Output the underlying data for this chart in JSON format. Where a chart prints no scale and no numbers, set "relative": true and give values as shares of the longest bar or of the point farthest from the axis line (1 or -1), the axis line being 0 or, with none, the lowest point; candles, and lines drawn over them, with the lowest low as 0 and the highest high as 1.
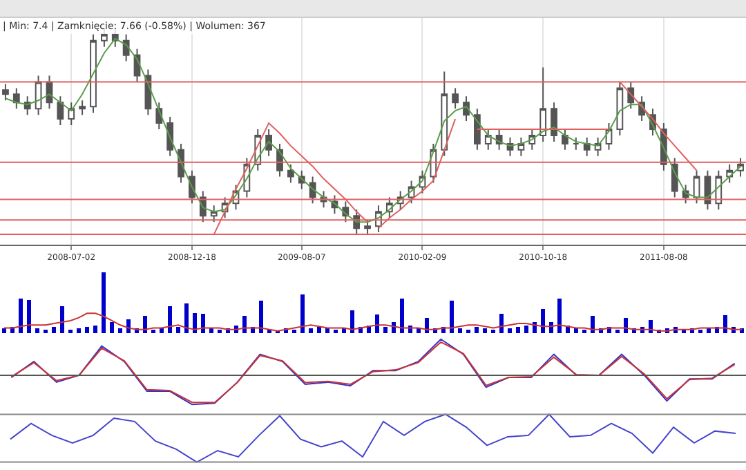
{
  "chart_data": [
    {
      "type": "candlestick",
      "relative": true,
      "grid": "x",
      "annotations": [
        "| Min: 7.4 | Zamknięcie: 7.66 (-0.58%) | Wolumen: 367"
      ],
      "color": "#555555",
      "categories": [
        null,
        null,
        null,
        null,
        null,
        null,
        "2008-07-02",
        null,
        null,
        null,
        null,
        null,
        null,
        null,
        null,
        null,
        null,
        "2008-12-18",
        null,
        null,
        null,
        null,
        null,
        null,
        null,
        null,
        null,
        "2009-08-07",
        null,
        null,
        null,
        null,
        null,
        null,
        null,
        null,
        null,
        null,
        "2010-02-09",
        null,
        null,
        null,
        null,
        null,
        null,
        null,
        null,
        null,
        null,
        "2010-10-18",
        null,
        null,
        null,
        null,
        null,
        null,
        null,
        null,
        null,
        null,
        "2011-08-08",
        null,
        null,
        null,
        null,
        null,
        null,
        null
      ],
      "ohlc": [
        [
          0.7,
          0.73,
          0.65,
          0.68
        ],
        [
          0.68,
          0.71,
          0.61,
          0.64
        ],
        [
          0.64,
          0.67,
          0.58,
          0.61
        ],
        [
          0.61,
          0.77,
          0.58,
          0.74
        ],
        [
          0.74,
          0.77,
          0.61,
          0.64
        ],
        [
          0.64,
          0.67,
          0.53,
          0.56
        ],
        [
          0.56,
          0.64,
          0.53,
          0.61
        ],
        [
          0.61,
          0.65,
          0.58,
          0.62
        ],
        [
          0.62,
          0.97,
          0.59,
          0.94
        ],
        [
          0.94,
          1.0,
          0.91,
          0.97
        ],
        [
          0.97,
          1.0,
          0.91,
          0.94
        ],
        [
          0.94,
          0.97,
          0.84,
          0.87
        ],
        [
          0.87,
          0.9,
          0.74,
          0.77
        ],
        [
          0.77,
          0.8,
          0.58,
          0.61
        ],
        [
          0.61,
          0.64,
          0.51,
          0.54
        ],
        [
          0.54,
          0.57,
          0.38,
          0.41
        ],
        [
          0.41,
          0.44,
          0.25,
          0.28
        ],
        [
          0.28,
          0.31,
          0.15,
          0.18
        ],
        [
          0.18,
          0.21,
          0.06,
          0.09
        ],
        [
          0.09,
          0.14,
          0.06,
          0.11
        ],
        [
          0.11,
          0.18,
          0.08,
          0.15
        ],
        [
          0.15,
          0.24,
          0.12,
          0.21
        ],
        [
          0.21,
          0.37,
          0.18,
          0.34
        ],
        [
          0.34,
          0.51,
          0.31,
          0.48
        ],
        [
          0.48,
          0.51,
          0.38,
          0.41
        ],
        [
          0.41,
          0.44,
          0.28,
          0.31
        ],
        [
          0.31,
          0.34,
          0.25,
          0.28
        ],
        [
          0.28,
          0.31,
          0.22,
          0.25
        ],
        [
          0.25,
          0.28,
          0.15,
          0.18
        ],
        [
          0.18,
          0.21,
          0.13,
          0.16
        ],
        [
          0.16,
          0.19,
          0.1,
          0.13
        ],
        [
          0.13,
          0.16,
          0.06,
          0.09
        ],
        [
          0.09,
          0.12,
          0.0,
          0.03
        ],
        [
          0.03,
          0.07,
          0.0,
          0.04
        ],
        [
          0.04,
          0.14,
          0.01,
          0.11
        ],
        [
          0.11,
          0.18,
          0.08,
          0.15
        ],
        [
          0.15,
          0.21,
          0.12,
          0.18
        ],
        [
          0.18,
          0.26,
          0.15,
          0.23
        ],
        [
          0.23,
          0.31,
          0.2,
          0.28
        ],
        [
          0.28,
          0.44,
          0.25,
          0.41
        ],
        [
          0.41,
          0.79,
          0.38,
          0.68
        ],
        [
          0.68,
          0.71,
          0.61,
          0.64
        ],
        [
          0.64,
          0.67,
          0.55,
          0.58
        ],
        [
          0.58,
          0.61,
          0.41,
          0.44
        ],
        [
          0.44,
          0.51,
          0.41,
          0.48
        ],
        [
          0.48,
          0.51,
          0.41,
          0.44
        ],
        [
          0.44,
          0.47,
          0.38,
          0.41
        ],
        [
          0.41,
          0.47,
          0.38,
          0.44
        ],
        [
          0.44,
          0.51,
          0.41,
          0.48
        ],
        [
          0.48,
          0.81,
          0.45,
          0.61
        ],
        [
          0.61,
          0.64,
          0.45,
          0.48
        ],
        [
          0.48,
          0.51,
          0.41,
          0.44
        ],
        [
          0.44,
          0.47,
          0.41,
          0.44
        ],
        [
          0.44,
          0.47,
          0.38,
          0.41
        ],
        [
          0.41,
          0.47,
          0.38,
          0.44
        ],
        [
          0.44,
          0.54,
          0.41,
          0.51
        ],
        [
          0.51,
          0.74,
          0.48,
          0.71
        ],
        [
          0.71,
          0.74,
          0.61,
          0.64
        ],
        [
          0.64,
          0.67,
          0.55,
          0.58
        ],
        [
          0.58,
          0.61,
          0.48,
          0.51
        ],
        [
          0.51,
          0.54,
          0.31,
          0.34
        ],
        [
          0.34,
          0.37,
          0.18,
          0.21
        ],
        [
          0.21,
          0.24,
          0.15,
          0.18
        ],
        [
          0.18,
          0.31,
          0.15,
          0.28
        ],
        [
          0.28,
          0.31,
          0.12,
          0.15
        ],
        [
          0.15,
          0.31,
          0.12,
          0.28
        ],
        [
          0.28,
          0.34,
          0.25,
          0.31
        ],
        [
          0.31,
          0.37,
          0.28,
          0.34
        ]
      ],
      "series": [
        {
          "type": "line",
          "color": "#5a9e4a",
          "values": [
            0.66,
            0.64,
            0.63,
            0.65,
            0.68,
            0.64,
            0.6,
            0.68,
            0.78,
            0.88,
            0.95,
            0.92,
            0.85,
            0.73,
            0.6,
            0.47,
            0.35,
            0.23,
            0.13,
            0.11,
            0.12,
            0.19,
            0.27,
            0.37,
            0.45,
            0.4,
            0.32,
            0.27,
            0.22,
            0.18,
            0.15,
            0.1,
            0.06,
            0.06,
            0.08,
            0.12,
            0.17,
            0.21,
            0.26,
            0.4,
            0.55,
            0.6,
            0.62,
            0.55,
            0.48,
            0.45,
            0.43,
            0.44,
            0.46,
            0.5,
            0.52,
            0.48,
            0.45,
            0.44,
            0.43,
            0.5,
            0.6,
            0.63,
            0.63,
            0.53,
            0.42,
            0.3,
            0.2,
            0.18,
            0.18,
            0.23,
            0.28,
            0.33
          ]
        },
        {
          "type": "line",
          "color": "#e06060",
          "values": [
            null,
            null,
            null,
            null,
            null,
            null,
            null,
            null,
            null,
            null,
            null,
            null,
            null,
            null,
            null,
            null,
            null,
            null,
            null,
            0,
            0.11,
            0.22,
            0.32,
            0.43,
            0.54,
            0.49,
            0.43,
            0.38,
            0.33,
            0.27,
            0.22,
            0.17,
            0.11,
            0.06,
            null,
            null,
            null,
            null,
            null,
            null,
            null,
            null,
            null,
            null,
            null,
            null,
            null,
            null,
            null,
            null,
            null,
            null,
            null,
            null,
            null,
            null,
            null,
            null,
            null,
            null,
            null,
            null,
            null,
            null,
            null,
            null,
            null,
            null
          ]
        },
        {
          "type": "line",
          "color": "#e06060",
          "values": [
            null,
            null,
            null,
            null,
            null,
            null,
            null,
            null,
            null,
            null,
            null,
            null,
            null,
            null,
            null,
            null,
            null,
            null,
            null,
            null,
            null,
            null,
            null,
            null,
            null,
            null,
            null,
            null,
            null,
            null,
            null,
            null,
            null,
            null,
            0.03,
            0.08,
            0.12,
            0.17,
            0.21,
            0.26,
            0.41,
            0.56,
            null,
            null,
            null,
            null,
            null,
            null,
            null,
            null,
            null,
            null,
            null,
            null,
            null,
            null,
            null,
            null,
            null,
            null,
            null,
            null,
            null,
            null,
            null,
            null,
            null,
            null
          ]
        },
        {
          "type": "line",
          "color": "#e06060",
          "values": [
            null,
            null,
            null,
            null,
            null,
            null,
            null,
            null,
            null,
            null,
            null,
            null,
            null,
            null,
            null,
            null,
            null,
            null,
            null,
            null,
            null,
            null,
            null,
            null,
            null,
            null,
            null,
            null,
            null,
            null,
            null,
            null,
            null,
            null,
            null,
            null,
            null,
            null,
            null,
            null,
            null,
            null,
            null,
            0.51,
            0.51,
            0.51,
            0.51,
            0.51,
            0.51,
            0.51,
            0.51,
            0.51,
            0.51,
            0.51,
            0.51,
            0.51,
            null,
            null,
            null,
            null,
            null,
            null,
            null,
            null,
            null,
            null,
            null,
            null
          ]
        },
        {
          "type": "line",
          "color": "#e06060",
          "values": [
            null,
            null,
            null,
            null,
            null,
            null,
            null,
            null,
            null,
            null,
            null,
            null,
            null,
            null,
            null,
            null,
            null,
            null,
            null,
            null,
            null,
            null,
            null,
            null,
            null,
            null,
            null,
            null,
            null,
            null,
            null,
            null,
            null,
            null,
            null,
            null,
            null,
            null,
            null,
            null,
            null,
            null,
            null,
            null,
            null,
            null,
            null,
            null,
            null,
            null,
            null,
            null,
            null,
            null,
            null,
            null,
            0.74,
            0.68,
            0.62,
            0.56,
            0.49,
            0.43,
            0.37,
            0.31,
            null,
            null,
            null,
            null
          ]
        }
      ],
      "ref_lines": [
        {
          "axis": "y",
          "value": 0.74,
          "color": "#e06060"
        },
        {
          "axis": "y",
          "value": 0.35,
          "color": "#e06060"
        },
        {
          "axis": "y",
          "value": 0.17,
          "color": "#e06060"
        },
        {
          "axis": "y",
          "value": 0.07,
          "color": "#e06060"
        },
        {
          "axis": "y",
          "value": 0,
          "color": "#e06060"
        }
      ]
    },
    {
      "type": "bar",
      "relative": true,
      "tick_labels": false,
      "color": "#0000cc",
      "categories": [
        null,
        null,
        null,
        null,
        null,
        null,
        null,
        null,
        null,
        null,
        null,
        null,
        null,
        null,
        null,
        null,
        null,
        null,
        null,
        null,
        null,
        null,
        null,
        null,
        null,
        null,
        null,
        null,
        null,
        null,
        null,
        null,
        null,
        null,
        null,
        null,
        null,
        null,
        null,
        null,
        null,
        null,
        null,
        null,
        null,
        null,
        null,
        null,
        null,
        null,
        null,
        null,
        null,
        null,
        null,
        null,
        null,
        null,
        null,
        null,
        null,
        null,
        null,
        null,
        null,
        null,
        null,
        null,
        null,
        null,
        null,
        null,
        null,
        null,
        null,
        null,
        null,
        null,
        null,
        null,
        null,
        null,
        null,
        null,
        null,
        null,
        null,
        null,
        null,
        null
      ],
      "values": [
        0.1,
        0.12,
        0.58,
        0.56,
        0.1,
        0.08,
        0.12,
        0.46,
        0.08,
        0.1,
        0.12,
        0.15,
        1,
        0.2,
        0.1,
        0.25,
        0.1,
        0.3,
        0.08,
        0.1,
        0.46,
        0.12,
        0.5,
        0.35,
        0.34,
        0.1,
        0.08,
        0.1,
        0.15,
        0.3,
        0.12,
        0.55,
        0.08,
        0.07,
        0.1,
        0.08,
        0.65,
        0.1,
        0.12,
        0.1,
        0.08,
        0.1,
        0.39,
        0.12,
        0.15,
        0.32,
        0.12,
        0.2,
        0.58,
        0.15,
        0.1,
        0.27,
        0.1,
        0.12,
        0.55,
        0.1,
        0.08,
        0.12,
        0.1,
        0.08,
        0.33,
        0.1,
        0.12,
        0.15,
        0.2,
        0.41,
        0.2,
        0.58,
        0.15,
        0.1,
        0.08,
        0.3,
        0.1,
        0.12,
        0.08,
        0.27,
        0.1,
        0.12,
        0.23,
        0.08,
        0.1,
        0.12,
        0.08,
        0.1,
        0.08,
        0.1,
        0.12,
        0.31,
        0.12,
        0.1
      ],
      "grid": false
    },
    {
      "type": "line",
      "relative": true,
      "tick_labels": false,
      "categories": [
        null,
        null,
        null,
        null,
        null,
        null,
        null,
        null,
        null,
        null,
        null,
        null,
        null,
        null,
        null,
        null,
        null,
        null,
        null,
        null,
        null,
        null,
        null,
        null,
        null,
        null,
        null,
        null,
        null,
        null,
        null,
        null,
        null,
        null,
        null,
        null,
        null,
        null,
        null,
        null,
        null,
        null,
        null,
        null,
        null,
        null,
        null,
        null,
        null,
        null,
        null,
        null,
        null,
        null,
        null,
        null,
        null,
        null,
        null,
        null,
        null,
        null,
        null,
        null,
        null,
        null,
        null,
        null,
        null,
        null,
        null,
        null,
        null,
        null,
        null,
        null,
        null,
        null,
        null,
        null,
        null,
        null,
        null,
        null,
        null,
        null,
        null,
        null,
        null,
        null
      ],
      "series": [
        {
          "color": "#cc3333",
          "values": [
            0.17,
            0.17,
            0.25,
            0.33,
            0.33,
            0.33,
            0.42,
            0.5,
            0.58,
            0.75,
            1,
            1,
            0.83,
            0.58,
            0.33,
            0.17,
            0.08,
            0.08,
            0.17,
            0.17,
            0.25,
            0.33,
            0.17,
            0.08,
            0.17,
            0.17,
            0.17,
            0.08,
            0.08,
            0.17,
            0.17,
            0.17,
            0.08,
            0,
            0.08,
            0.17,
            0.25,
            0.33,
            0.25,
            0.17,
            0.17,
            0.17,
            0.08,
            0.17,
            0.25,
            0.33,
            0.33,
            0.25,
            0.17,
            0.17,
            0.17,
            0.08,
            0.08,
            0.17,
            0.17,
            0.25,
            0.33,
            0.33,
            0.25,
            0.17,
            0.25,
            0.33,
            0.42,
            0.42,
            0.33,
            0.25,
            0.25,
            0.33,
            0.25,
            0.17,
            0.17,
            0.08,
            0.08,
            0.17,
            0.17,
            0.17,
            0.08,
            0.08,
            0.08,
            0,
            0,
            0.08,
            0.08,
            0.08,
            0.17,
            0.17,
            0.17,
            0.17,
            0.08,
            0.08
          ]
        }
      ]
    },
    {
      "type": "line",
      "relative": true,
      "tick_labels": false,
      "categories": [
        null,
        null,
        null,
        null,
        null,
        null,
        null,
        null,
        null,
        null,
        null,
        null,
        null,
        null,
        null,
        null,
        null,
        null,
        null,
        null,
        null,
        null,
        null,
        null,
        null,
        null,
        null,
        null,
        null,
        null,
        null,
        null,
        null
      ],
      "series": [
        {
          "color": "#3333cc",
          "values": [
            -0.06,
            0.38,
            -0.19,
            0,
            0.81,
            0.38,
            -0.44,
            -0.44,
            -0.81,
            -0.77,
            -0.19,
            0.58,
            0.38,
            -0.25,
            -0.19,
            -0.29,
            0.13,
            0.13,
            0.38,
            1.0,
            0.58,
            -0.33,
            -0.06,
            -0.06,
            0.58,
            0,
            0,
            0.58,
            0,
            -0.71,
            -0.1,
            -0.1,
            0.33
          ]
        },
        {
          "color": "#cc3333",
          "values": [
            -0.04,
            0.35,
            -0.15,
            0,
            0.75,
            0.4,
            -0.4,
            -0.42,
            -0.75,
            -0.75,
            -0.2,
            0.55,
            0.4,
            -0.2,
            -0.17,
            -0.25,
            0.1,
            0.15,
            0.35,
            0.92,
            0.6,
            -0.28,
            -0.06,
            -0.04,
            0.5,
            0.02,
            0,
            0.52,
            0.04,
            -0.65,
            -0.12,
            -0.08,
            0.3
          ]
        }
      ],
      "ref_lines": [
        {
          "axis": "y",
          "value": 0,
          "color": "#555555"
        }
      ]
    },
    {
      "type": "line",
      "relative": true,
      "tick_labels": false,
      "categories": [
        null,
        null,
        null,
        null,
        null,
        null,
        null,
        null,
        null,
        null,
        null,
        null,
        null,
        null,
        null,
        null,
        null,
        null,
        null,
        null,
        null,
        null,
        null,
        null,
        null,
        null,
        null,
        null,
        null,
        null,
        null,
        null,
        null,
        null,
        null,
        null
      ],
      "series": [
        {
          "color": "#4444cc",
          "values": [
            0.48,
            0.81,
            0.56,
            0.4,
            0.56,
            0.92,
            0.85,
            0.44,
            0.27,
            0,
            0.24,
            0.11,
            0.56,
            0.97,
            0.48,
            0.32,
            0.44,
            0.11,
            0.85,
            0.56,
            0.85,
            1.0,
            0.73,
            0.35,
            0.53,
            0.56,
            1.0,
            0.53,
            0.56,
            0.81,
            0.6,
            0.19,
            0.73,
            0.4,
            0.65,
            0.6
          ]
        }
      ],
      "ref_lines": [
        {
          "axis": "y",
          "value": 0,
          "color": "#888888"
        },
        {
          "axis": "y",
          "value": 1,
          "color": "#888888"
        }
      ]
    }
  ]
}
